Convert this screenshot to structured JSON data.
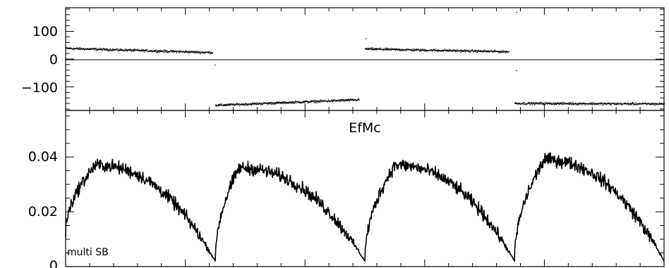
{
  "chart_data": [
    {
      "type": "scatter",
      "title": "",
      "xlabel": "",
      "ylabel": "",
      "ylim": [
        -185,
        185
      ],
      "yticks": [
        {
          "value": 100,
          "label": "100"
        },
        {
          "value": 0,
          "label": "0"
        },
        {
          "value": -100,
          "label": "−100"
        }
      ],
      "x_range": [
        0,
        1
      ],
      "segments": [
        {
          "x_start": 0.0,
          "x_end": 0.245,
          "y_start": 40,
          "y_end": 25,
          "noise": 6
        },
        {
          "x_start": 0.25,
          "x_end": 0.49,
          "y_start": -165,
          "y_end": -145,
          "noise": 6
        },
        {
          "x_start": 0.5,
          "x_end": 0.74,
          "y_start": 38,
          "y_end": 28,
          "noise": 6
        },
        {
          "x_start": 0.75,
          "x_end": 1.0,
          "y_start": -158,
          "y_end": -160,
          "noise": 6
        }
      ],
      "outliers": [
        {
          "x": 0.249,
          "y": -20
        },
        {
          "x": 0.501,
          "y": 75
        },
        {
          "x": 0.753,
          "y": 170
        },
        {
          "x": 0.753,
          "y": -40
        }
      ],
      "grid": false
    },
    {
      "type": "line",
      "title": "EfMc",
      "xlabel": "",
      "ylabel": "",
      "ylim": [
        0,
        0.057
      ],
      "yticks": [
        {
          "value": 0,
          "label": "0"
        },
        {
          "value": 0.02,
          "label": "0.02"
        },
        {
          "value": 0.04,
          "label": "0.04"
        }
      ],
      "x_range": [
        0,
        1
      ],
      "annotation": "multi  SB",
      "segments": [
        {
          "x_start": 0.0,
          "x_end": 0.25,
          "y_start": 0.012,
          "y_peak": 0.037,
          "x_peak": 0.05,
          "y_end": 0.002
        },
        {
          "x_start": 0.25,
          "x_end": 0.5,
          "y_start": 0.002,
          "y_peak": 0.036,
          "x_peak": 0.29,
          "y_end": 0.002
        },
        {
          "x_start": 0.5,
          "x_end": 0.75,
          "y_start": 0.002,
          "y_peak": 0.037,
          "x_peak": 0.55,
          "y_end": 0.002
        },
        {
          "x_start": 0.75,
          "x_end": 1.0,
          "y_start": 0.002,
          "y_peak": 0.039,
          "x_peak": 0.8,
          "y_end": 0.002
        }
      ],
      "noise": 0.0035,
      "grid": false
    }
  ]
}
